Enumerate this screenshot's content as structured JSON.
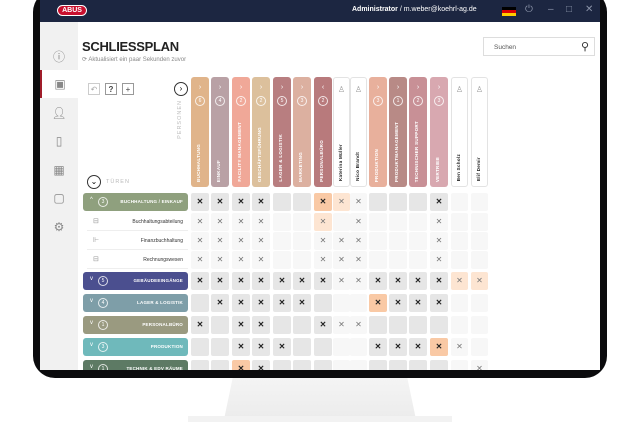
{
  "app": {
    "logo": "ABUS",
    "user_role": "Administrator",
    "user_email": "m.weber@koehrl-ag.de",
    "language_flag": "de"
  },
  "sidebar": {
    "items": [
      {
        "icon": "info-icon"
      },
      {
        "icon": "lock-plan-icon",
        "active": true
      },
      {
        "icon": "user-icon"
      },
      {
        "icon": "door-icon"
      },
      {
        "icon": "calendar-icon"
      },
      {
        "icon": "tablet-icon"
      },
      {
        "icon": "gear-icon"
      }
    ]
  },
  "page": {
    "title": "SCHLIESSPLAN",
    "updated": "Aktualisiert ein paar Sekunden zuvor",
    "search_placeholder": "Suchen",
    "persons_label": "PERSONEN",
    "doors_label": "TÜREN"
  },
  "toolbar": {
    "undo": "↶",
    "help": "?",
    "add": "+"
  },
  "columns": [
    {
      "label": "BUCHHALTUNG",
      "count": "6",
      "color": "#e0b48a",
      "type": "group",
      "chev": "›"
    },
    {
      "label": "EINKAUF",
      "count": "4",
      "color": "#b9a1a5",
      "type": "group",
      "chev": "›"
    },
    {
      "label": "FACILITY MANAGEMENT",
      "count": "2",
      "color": "#f0a898",
      "type": "group",
      "chev": "›"
    },
    {
      "label": "GESCHÄFTSFÜHRUNG",
      "count": "2",
      "color": "#dcc09c",
      "type": "group",
      "chev": "›"
    },
    {
      "label": "LAGER & LOGISTIK",
      "count": "5",
      "color": "#b87e80",
      "type": "group",
      "chev": "›"
    },
    {
      "label": "MARKETING",
      "count": "3",
      "color": "#dcb0a0",
      "type": "group",
      "chev": "›"
    },
    {
      "label": "PERSONALBÜRO",
      "count": "2",
      "color": "#b87a7c",
      "type": "group",
      "chev": "‹"
    },
    {
      "label": "Katerina Müller",
      "type": "person"
    },
    {
      "label": "Nico Brandt",
      "type": "person"
    },
    {
      "label": "PRODUKTION",
      "count": "3",
      "color": "#e8b09c",
      "type": "group",
      "chev": "›"
    },
    {
      "label": "PRODUKTMANAGEMENT",
      "count": "1",
      "color": "#b88a86",
      "type": "group",
      "chev": "›"
    },
    {
      "label": "TECHNISCHER SUPPORT",
      "count": "2",
      "color": "#c89096",
      "type": "group",
      "chev": "›"
    },
    {
      "label": "VERTRIEB",
      "count": "3",
      "color": "#d8a8b0",
      "type": "group",
      "chev": "›"
    },
    {
      "label": "Ben Scholz",
      "type": "person"
    },
    {
      "label": "Elif Demir",
      "type": "person"
    }
  ],
  "rows": [
    {
      "label": "BUCHHALTUNG / EINKAUF",
      "count": "3",
      "color": "#8fa07e",
      "type": "group",
      "chev": "^",
      "cells": [
        "B",
        "B",
        "B",
        "B",
        "",
        "",
        "BO",
        "LO",
        "L",
        "",
        "",
        "",
        "B",
        "",
        ""
      ]
    },
    {
      "label": "Buchhaltungsabteilung",
      "type": "door",
      "icon": "door-lock-icon",
      "cells": [
        "L",
        "L",
        "L",
        "L",
        "",
        "",
        "LO",
        "",
        "L",
        "",
        "",
        "",
        "L",
        "",
        ""
      ]
    },
    {
      "label": "Finanzbuchhaltung",
      "type": "door",
      "icon": "door-handle-icon",
      "cells": [
        "L",
        "L",
        "L",
        "L",
        "",
        "",
        "L",
        "L",
        "L",
        "",
        "",
        "",
        "L",
        "",
        ""
      ]
    },
    {
      "label": "Rechnungswesen",
      "type": "door",
      "icon": "door-lock-icon",
      "cells": [
        "L",
        "L",
        "L",
        "L",
        "",
        "",
        "L",
        "L",
        "L",
        "",
        "",
        "",
        "L",
        "",
        ""
      ]
    },
    {
      "label": "GEBÄUDEEINGÄNGE",
      "count": "5",
      "color": "#4b4f8f",
      "type": "group",
      "chev": "v",
      "cells": [
        "B",
        "B",
        "B",
        "B",
        "B",
        "B",
        "B",
        "L",
        "L",
        "B",
        "B",
        "B",
        "B",
        "LO",
        "LO"
      ]
    },
    {
      "label": "LAGER & LOGISTIK",
      "count": "4",
      "color": "#7e9ea8",
      "type": "group",
      "chev": "v",
      "cells": [
        "",
        "B",
        "B",
        "B",
        "B",
        "B",
        "",
        "",
        "",
        "BO",
        "B",
        "B",
        "B",
        "",
        ""
      ]
    },
    {
      "label": "PERSONALBÜRO",
      "count": "1",
      "color": "#9a9a80",
      "type": "group",
      "chev": "v",
      "cells": [
        "B",
        "",
        "B",
        "B",
        "",
        "",
        "B",
        "L",
        "L",
        "",
        "",
        "",
        "",
        "",
        ""
      ]
    },
    {
      "label": "PRODUKTION",
      "count": "3",
      "color": "#6fb9bb",
      "type": "group",
      "chev": "v",
      "cells": [
        "",
        "",
        "B",
        "B",
        "B",
        "",
        "",
        "",
        "",
        "B",
        "B",
        "B",
        "BO",
        "L",
        ""
      ]
    },
    {
      "label": "TECHNIK & EDV RÄUME",
      "count": "1",
      "color": "#5d7a64",
      "type": "group",
      "chev": "v",
      "cells": [
        "",
        "",
        "BO",
        "B",
        "",
        "",
        "",
        "",
        "",
        "",
        "",
        "",
        "",
        "",
        "L"
      ]
    }
  ],
  "colors": {
    "titlebar": "#1c2641",
    "accent": "#a01d2a",
    "highlight": "#f9c9a5"
  }
}
